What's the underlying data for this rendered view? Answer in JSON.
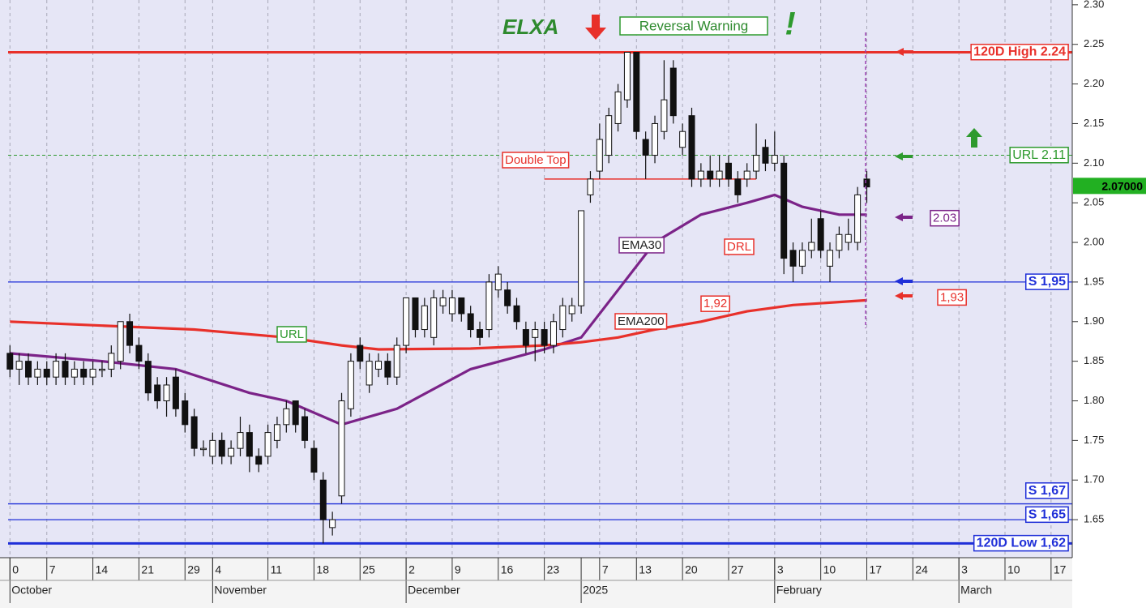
{
  "chart_data": {
    "type": "candlestick",
    "title": "ELXA",
    "signal": "Reversal Warning",
    "alert": "!",
    "x": [
      0,
      1,
      2,
      3,
      4,
      5,
      6,
      7,
      8,
      9,
      10,
      11,
      12,
      13,
      14,
      15,
      16,
      17,
      18,
      19,
      20,
      21,
      22,
      23,
      24,
      25,
      26,
      27,
      28,
      29,
      30,
      31,
      32,
      33,
      34,
      35,
      36,
      37,
      38,
      39,
      40,
      41,
      42,
      43,
      44,
      45,
      46,
      47,
      48,
      49,
      50,
      51,
      52,
      53,
      54,
      55,
      56,
      57,
      58,
      59,
      60,
      61,
      62,
      63,
      64,
      65,
      66,
      67,
      68,
      69,
      70,
      71,
      72,
      73,
      74,
      75,
      76,
      77,
      78,
      79,
      80,
      81,
      82,
      83,
      84,
      85,
      86,
      87,
      88,
      89,
      90,
      91,
      92,
      93
    ],
    "open": [
      1.86,
      1.84,
      1.85,
      1.83,
      1.84,
      1.83,
      1.85,
      1.83,
      1.84,
      1.83,
      1.84,
      1.84,
      1.85,
      1.9,
      1.87,
      1.85,
      1.82,
      1.8,
      1.83,
      1.8,
      1.78,
      1.74,
      1.73,
      1.75,
      1.73,
      1.74,
      1.76,
      1.73,
      1.73,
      1.75,
      1.77,
      1.8,
      1.78,
      1.74,
      1.7,
      1.64,
      1.68,
      1.79,
      1.87,
      1.82,
      1.84,
      1.85,
      1.83,
      1.87,
      1.93,
      1.89,
      1.88,
      1.92,
      1.91,
      1.93,
      1.91,
      1.89,
      1.89,
      1.94,
      1.94,
      1.92,
      1.89,
      1.88,
      1.89,
      1.87,
      1.89,
      1.91,
      1.92,
      2.06,
      2.09,
      2.11,
      2.15,
      2.18,
      2.24,
      2.13,
      2.11,
      2.14,
      2.22,
      2.12,
      2.16,
      2.08,
      2.09,
      2.08,
      2.1,
      2.08,
      2.08,
      2.09,
      2.12,
      2.1,
      2.1,
      1.99,
      1.97,
      1.99,
      2.03,
      1.97,
      1.99,
      2.0,
      2.0,
      2.08
    ],
    "high": [
      1.87,
      1.86,
      1.86,
      1.85,
      1.85,
      1.86,
      1.86,
      1.85,
      1.85,
      1.85,
      1.85,
      1.87,
      1.9,
      1.91,
      1.88,
      1.86,
      1.83,
      1.83,
      1.84,
      1.81,
      1.79,
      1.75,
      1.76,
      1.76,
      1.75,
      1.78,
      1.77,
      1.74,
      1.77,
      1.78,
      1.8,
      1.8,
      1.79,
      1.75,
      1.71,
      1.66,
      1.81,
      1.86,
      1.88,
      1.86,
      1.86,
      1.86,
      1.88,
      1.93,
      1.93,
      1.93,
      1.94,
      1.94,
      1.94,
      1.93,
      1.92,
      1.9,
      1.96,
      1.97,
      1.95,
      1.93,
      1.9,
      1.9,
      1.9,
      1.91,
      1.93,
      1.93,
      2.04,
      2.09,
      2.15,
      2.17,
      2.2,
      2.24,
      2.24,
      2.14,
      2.16,
      2.23,
      2.23,
      2.15,
      2.17,
      2.1,
      2.11,
      2.11,
      2.11,
      2.09,
      2.1,
      2.15,
      2.13,
      2.14,
      2.11,
      2.0,
      2.0,
      2.03,
      2.04,
      2.0,
      2.02,
      2.03,
      2.07,
      2.09
    ],
    "low": [
      1.83,
      1.82,
      1.82,
      1.82,
      1.82,
      1.82,
      1.82,
      1.82,
      1.82,
      1.82,
      1.83,
      1.83,
      1.84,
      1.86,
      1.84,
      1.8,
      1.79,
      1.78,
      1.78,
      1.76,
      1.73,
      1.73,
      1.72,
      1.72,
      1.72,
      1.73,
      1.71,
      1.71,
      1.72,
      1.74,
      1.76,
      1.76,
      1.74,
      1.7,
      1.62,
      1.63,
      1.67,
      1.78,
      1.84,
      1.81,
      1.83,
      1.82,
      1.82,
      1.86,
      1.88,
      1.88,
      1.87,
      1.91,
      1.9,
      1.9,
      1.88,
      1.87,
      1.88,
      1.93,
      1.91,
      1.89,
      1.86,
      1.85,
      1.86,
      1.86,
      1.88,
      1.9,
      1.91,
      2.05,
      2.08,
      2.1,
      2.14,
      2.17,
      2.13,
      2.08,
      2.1,
      2.13,
      2.15,
      2.11,
      2.07,
      2.07,
      2.07,
      2.07,
      2.07,
      2.05,
      2.07,
      2.08,
      2.09,
      2.09,
      1.96,
      1.95,
      1.96,
      1.98,
      1.98,
      1.95,
      1.98,
      1.99,
      1.99,
      2.05
    ],
    "close": [
      1.84,
      1.85,
      1.83,
      1.84,
      1.83,
      1.85,
      1.83,
      1.84,
      1.83,
      1.84,
      1.84,
      1.86,
      1.9,
      1.87,
      1.85,
      1.81,
      1.8,
      1.82,
      1.79,
      1.77,
      1.74,
      1.74,
      1.75,
      1.73,
      1.74,
      1.76,
      1.73,
      1.72,
      1.76,
      1.77,
      1.79,
      1.77,
      1.75,
      1.71,
      1.65,
      1.65,
      1.8,
      1.85,
      1.85,
      1.85,
      1.85,
      1.83,
      1.87,
      1.93,
      1.89,
      1.92,
      1.93,
      1.93,
      1.93,
      1.91,
      1.89,
      1.88,
      1.95,
      1.96,
      1.92,
      1.9,
      1.87,
      1.89,
      1.87,
      1.9,
      1.92,
      1.92,
      2.04,
      2.08,
      2.13,
      2.16,
      2.19,
      2.24,
      2.14,
      2.11,
      2.15,
      2.18,
      2.16,
      2.14,
      2.08,
      2.09,
      2.08,
      2.09,
      2.08,
      2.06,
      2.09,
      2.11,
      2.1,
      2.11,
      1.98,
      1.97,
      1.99,
      2.0,
      1.99,
      1.99,
      2.01,
      2.01,
      2.06,
      2.07
    ],
    "xlim": [
      -0.2,
      115.3
    ],
    "ylim": [
      1.602,
      2.306
    ],
    "yticks": [
      1.65,
      {
        "value": 1.7,
        "label": "1.70"
      },
      1.75,
      {
        "value": 1.8,
        "label": "1.80"
      },
      1.85,
      {
        "value": 1.9,
        "label": "1.90"
      },
      1.95,
      {
        "value": 2.0,
        "label": "2.00"
      },
      2.05,
      {
        "value": 2.1,
        "label": "2.10"
      },
      2.15,
      {
        "value": 2.2,
        "label": "2.20"
      },
      2.25,
      {
        "value": 2.3,
        "label": "2.30"
      }
    ],
    "xticks": [
      {
        "value": 0,
        "label": "0"
      },
      {
        "value": 4,
        "label": "7"
      },
      {
        "value": 9,
        "label": "14"
      },
      {
        "value": 14,
        "label": "21"
      },
      {
        "value": 19,
        "label": "29"
      },
      {
        "value": 22,
        "label": "4"
      },
      {
        "value": 28,
        "label": "11"
      },
      {
        "value": 33,
        "label": "18"
      },
      {
        "value": 38,
        "label": "25"
      },
      {
        "value": 43,
        "label": "2"
      },
      {
        "value": 48,
        "label": "9"
      },
      {
        "value": 53,
        "label": "16"
      },
      {
        "value": 58,
        "label": "23"
      },
      {
        "value": 64,
        "label": "7"
      },
      {
        "value": 68,
        "label": "13"
      },
      {
        "value": 73,
        "label": "20"
      },
      {
        "value": 78,
        "label": "27"
      },
      {
        "value": 83,
        "label": "3"
      },
      {
        "value": 88,
        "label": "10"
      },
      {
        "value": 93,
        "label": "17"
      },
      {
        "value": 98,
        "label": "24"
      },
      {
        "value": 103,
        "label": "3"
      },
      {
        "value": 108,
        "label": "10"
      },
      {
        "value": 113,
        "label": "17"
      }
    ],
    "month_ticks": [
      {
        "value": 0,
        "label": "October"
      },
      {
        "value": 22,
        "label": "November"
      },
      {
        "value": 43,
        "label": "December"
      },
      {
        "value": 62,
        "label": "2025"
      },
      {
        "value": 83,
        "label": "February"
      },
      {
        "value": 103,
        "label": "March"
      }
    ],
    "levels": [
      {
        "label": "120D High 2.24",
        "value": 2.24,
        "color": "#e8302a",
        "style": "solid",
        "width": 3
      },
      {
        "label": "URL 2.11",
        "value": 2.11,
        "color": "#2e9a2e",
        "style": "dashed",
        "width": 1
      },
      {
        "label": "S 1,95",
        "value": 1.95,
        "color": "#1f2fd8",
        "style": "solid",
        "width": 1.3
      },
      {
        "label": "S 1,67",
        "value": 1.67,
        "color": "#1f2fd8",
        "style": "solid",
        "width": 1.3
      },
      {
        "label": "S 1,65",
        "value": 1.65,
        "color": "#1f2fd8",
        "style": "solid",
        "width": 1.3
      },
      {
        "label": "120D Low 1,62",
        "value": 1.62,
        "color": "#1f2fd8",
        "style": "solid",
        "width": 3
      }
    ],
    "lines": [
      {
        "name": "EMA30",
        "color": "#7b2388",
        "x": [
          0,
          10,
          18,
          26,
          30,
          34,
          36,
          42,
          50,
          58,
          62,
          66,
          70,
          75,
          80,
          83,
          86,
          90,
          93
        ],
        "values": [
          1.86,
          1.85,
          1.84,
          1.81,
          1.8,
          1.78,
          1.77,
          1.79,
          1.84,
          1.865,
          1.88,
          1.94,
          2.0,
          2.035,
          2.05,
          2.06,
          2.045,
          2.035,
          2.035
        ]
      },
      {
        "name": "EMA200",
        "color": "#e8302a",
        "x": [
          0,
          10,
          20,
          30,
          36,
          40,
          50,
          58,
          62,
          66,
          70,
          75,
          80,
          85,
          93
        ],
        "values": [
          1.9,
          1.895,
          1.89,
          1.88,
          1.87,
          1.865,
          1.866,
          1.87,
          1.874,
          1.88,
          1.89,
          1.9,
          1.913,
          1.921,
          1.927
        ]
      }
    ],
    "double_top": {
      "label": "Double Top",
      "value": 2.08,
      "x": [
        58,
        81
      ]
    },
    "price_labels": [
      {
        "label": "2.03",
        "value": 2.03,
        "color": "#7b2388"
      },
      {
        "label": "1,93",
        "value": 1.93,
        "color": "#e8302a"
      },
      {
        "label": "1,92",
        "value": 1.92,
        "color": "#e8302a"
      }
    ],
    "line_labels": [
      "URL",
      "DRL"
    ],
    "last_price": {
      "label": "2.07000",
      "value": 2.07
    }
  }
}
